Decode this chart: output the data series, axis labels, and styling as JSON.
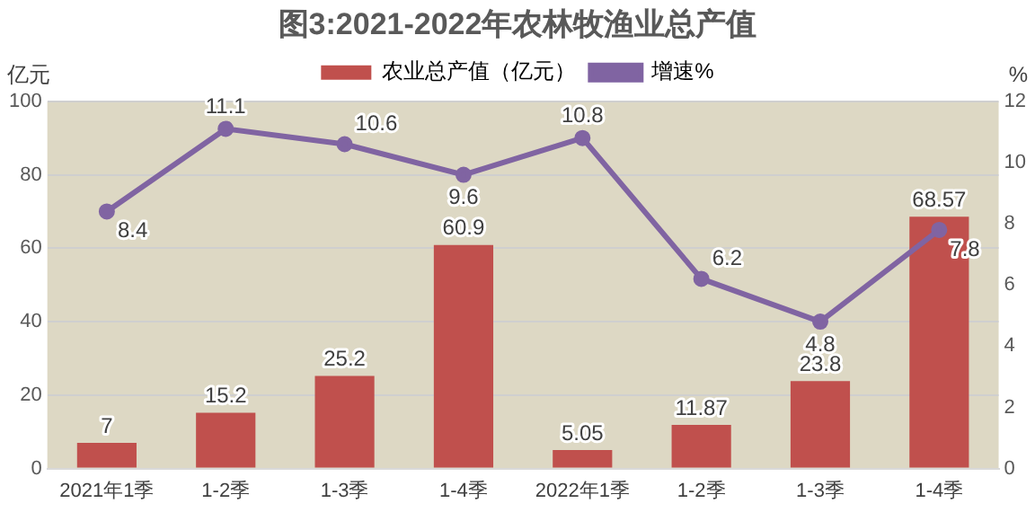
{
  "chart_data": {
    "type": "bar",
    "title": "图3:2021-2022年农林牧渔业总产值",
    "ylabel": "亿元",
    "y2label": "%",
    "categories": [
      "2021年1季",
      "1-2季",
      "1-3季",
      "1-4季",
      "2022年1季",
      "1-2季",
      "1-3季",
      "1-4季"
    ],
    "series": [
      {
        "name": "农业总产值（亿元）",
        "color": "#c0504d",
        "values": [
          7,
          15.2,
          25.2,
          60.9,
          5.05,
          11.87,
          23.8,
          68.57
        ]
      },
      {
        "name": "增速%",
        "type": "line",
        "axis": "y2",
        "color": "#8064a2",
        "values": [
          8.4,
          11.1,
          10.6,
          9.6,
          10.8,
          6.2,
          4.8,
          7.8
        ]
      }
    ],
    "ylim": [
      0,
      100
    ],
    "yticks": [
      0,
      20,
      40,
      60,
      80,
      100
    ],
    "y2lim": [
      0,
      12
    ],
    "y2ticks": [
      0,
      2,
      4,
      6,
      8,
      10,
      12
    ],
    "grid": "y",
    "legend": "top",
    "marker": "circle",
    "data_labels": true
  }
}
